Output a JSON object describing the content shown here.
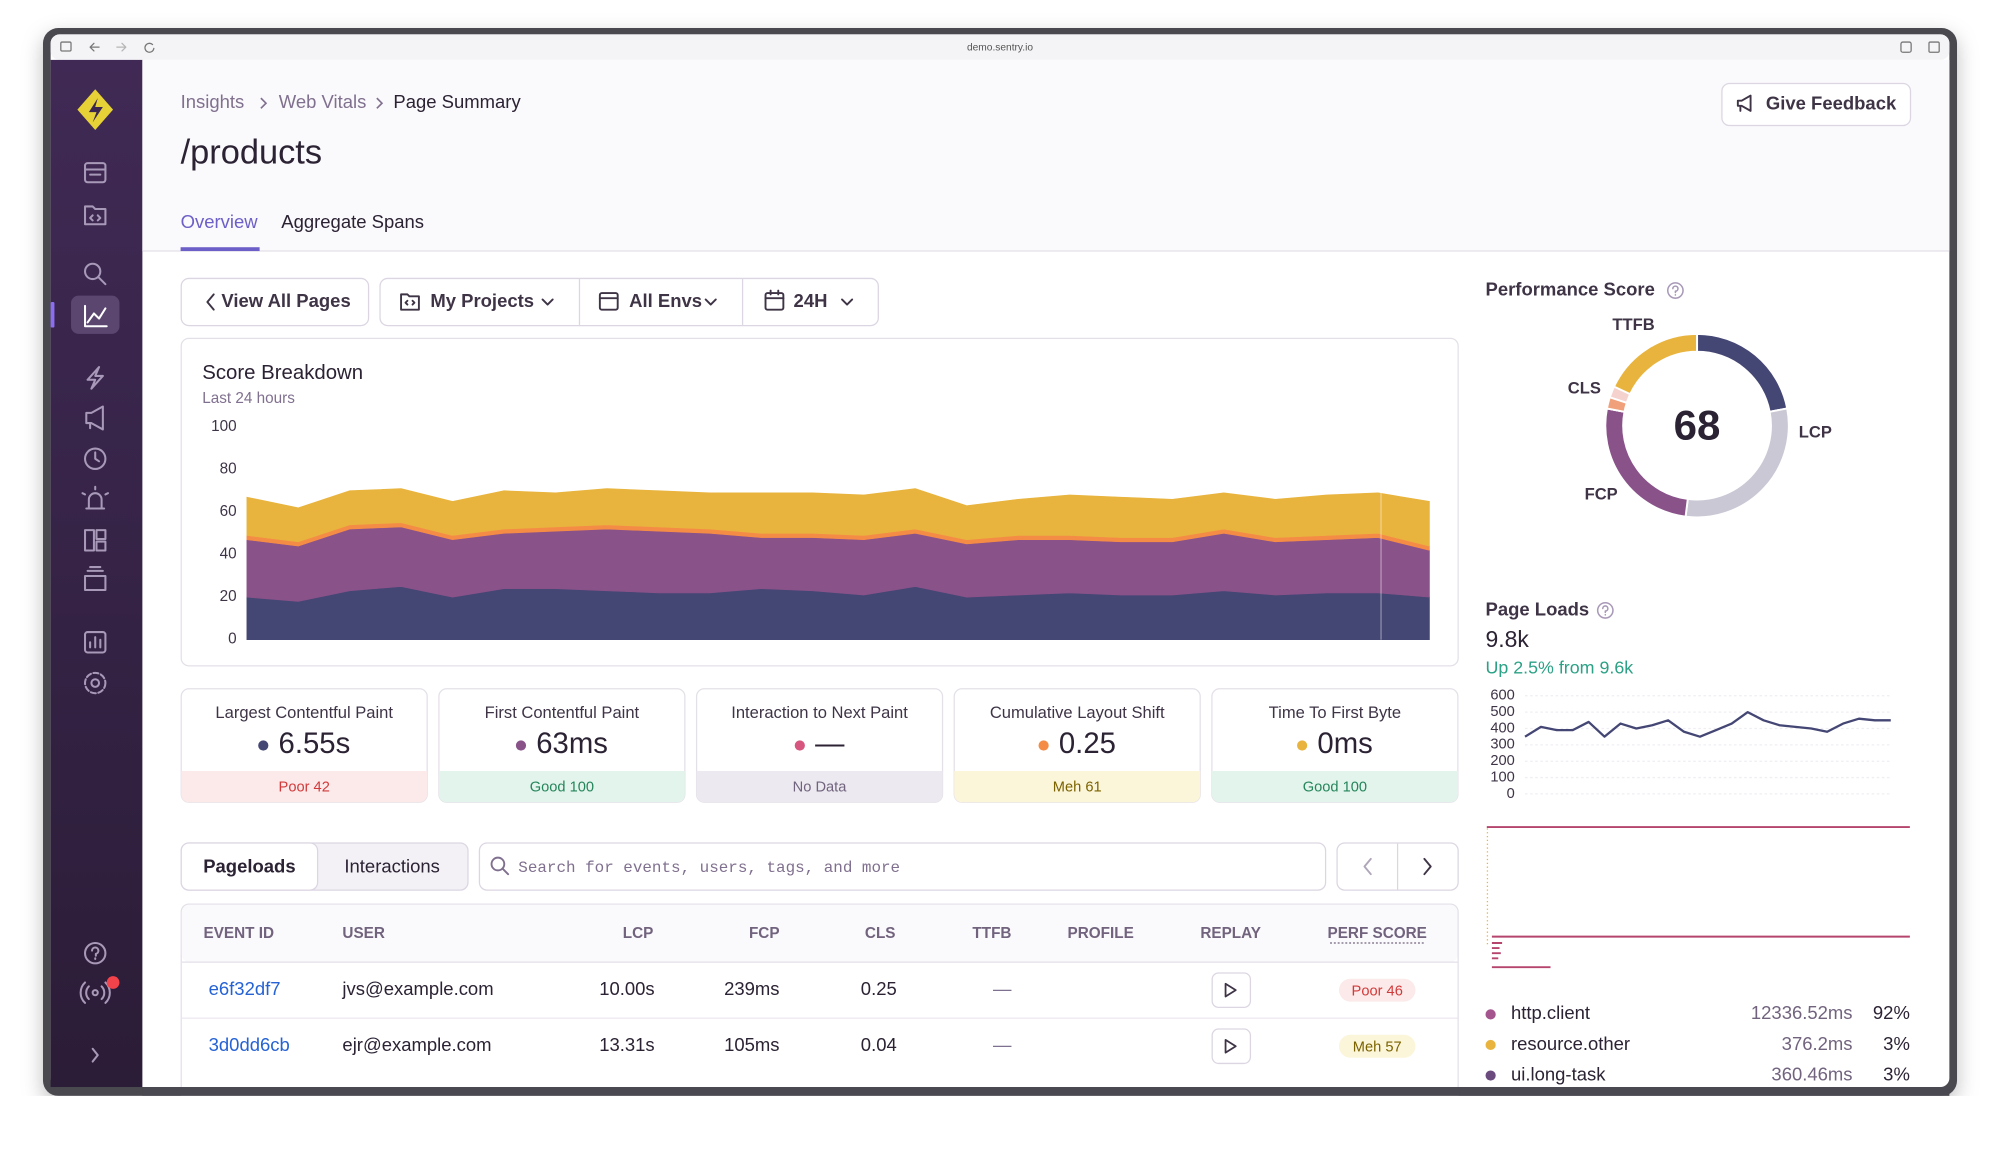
{
  "browser_url": "demo.sentry.io",
  "breadcrumbs": [
    "Insights",
    "Web Vitals",
    "Page Summary"
  ],
  "page_title": "/products",
  "feedback_button": "Give Feedback",
  "tabs": [
    "Overview",
    "Aggregate Spans"
  ],
  "filters": [
    "View All Pages",
    "My Projects",
    "All Envs",
    "24H"
  ],
  "chart_data": [
    {
      "type": "area",
      "title": "Score Breakdown",
      "subtitle": "Last 24 hours",
      "stacked": true,
      "categories": [
        null,
        null,
        null,
        null,
        null,
        null,
        null,
        null,
        null,
        null,
        null,
        null,
        null,
        null,
        null,
        null,
        null,
        null,
        null,
        null,
        null,
        null,
        null,
        null
      ],
      "series": [
        {
          "color": "#444674",
          "values": [
            20,
            18,
            23,
            25,
            20,
            24,
            24,
            23,
            22,
            22,
            24,
            23,
            21,
            25,
            20,
            21,
            22,
            21,
            21,
            23,
            21,
            22,
            22,
            20
          ]
        },
        {
          "color": "#895289",
          "values": [
            27,
            26,
            29,
            28,
            27,
            26,
            27,
            29,
            29,
            28,
            24,
            25,
            26,
            25,
            25,
            26,
            25,
            25,
            25,
            27,
            25,
            25,
            26,
            22
          ]
        },
        {
          "color": "#f58c46",
          "values": [
            2,
            2,
            2,
            2,
            2,
            2,
            2,
            2,
            2,
            2,
            2,
            2,
            2,
            2,
            2,
            2,
            2,
            2,
            2,
            2,
            2,
            2,
            2,
            2
          ]
        },
        {
          "color": "#e8b43e",
          "values": [
            18,
            16,
            16,
            16,
            16,
            18,
            16,
            17,
            17,
            17,
            19,
            19,
            19,
            19,
            16,
            17,
            19,
            19,
            18,
            17,
            18,
            19,
            19,
            21
          ]
        }
      ],
      "ylim": [
        0,
        100
      ],
      "yticks": [
        0,
        20,
        40,
        60,
        80,
        100
      ],
      "grid": false
    },
    {
      "type": "pie",
      "title": "Performance Score",
      "score": 68,
      "categories": [
        "LCP",
        "FCP",
        "CLS",
        "TTFB"
      ],
      "values": [
        22,
        26,
        2,
        18
      ],
      "shortfall": [
        30,
        0,
        2,
        0
      ],
      "colors": [
        "#444674",
        "#895289",
        "#f0a07a",
        "#e8b43e"
      ],
      "shortfall_colors": [
        "#c9c8d4",
        "#e2cfe2",
        "#f6d2cf",
        "#f4e1b3"
      ]
    },
    {
      "type": "line",
      "title": "Page Loads",
      "total": "9.8k",
      "change": "Up 2.5% from 9.6k",
      "categories": [
        null,
        null,
        null,
        null,
        null,
        null,
        null,
        null,
        null,
        null,
        null,
        null,
        null,
        null,
        null,
        null,
        null,
        null,
        null,
        null,
        null,
        null,
        null,
        null
      ],
      "series": [
        {
          "color": "#444674",
          "values": [
            350,
            410,
            390,
            390,
            440,
            350,
            430,
            400,
            420,
            450,
            380,
            350,
            390,
            430,
            500,
            450,
            420,
            410,
            400,
            380,
            430,
            460,
            450,
            450
          ]
        }
      ],
      "ylim": [
        0,
        600
      ],
      "yticks": [
        0,
        100,
        200,
        300,
        400,
        500,
        600
      ],
      "grid": true
    }
  ],
  "vitals": [
    {
      "name": "Largest Contentful Paint",
      "value": "6.55s",
      "status": "Poor 42",
      "dot_color": "#444674",
      "badge_color": "#fce9e9",
      "badge_text_color": "#d13a3a"
    },
    {
      "name": "First Contentful Paint",
      "value": "63ms",
      "status": "Good 100",
      "dot_color": "#895289",
      "badge_color": "#e3f4ec",
      "badge_text_color": "#25855a"
    },
    {
      "name": "Interaction to Next Paint",
      "value": "—",
      "status": "No Data",
      "dot_color": "#d6567f",
      "badge_color": "#eceaf0",
      "badge_text_color": "#71637e"
    },
    {
      "name": "Cumulative Layout Shift",
      "value": "0.25",
      "status": "Meh 61",
      "dot_color": "#f58c46",
      "badge_color": "#fbf5d9",
      "badge_text_color": "#7b6200"
    },
    {
      "name": "Time To First Byte",
      "value": "0ms",
      "status": "Good 100",
      "dot_color": "#e8b43e",
      "badge_color": "#e3f4ec",
      "badge_text_color": "#25855a"
    }
  ],
  "events": {
    "tabs": [
      "Pageloads",
      "Interactions"
    ],
    "search_placeholder": "Search for events, users, tags, and more",
    "columns": [
      "EVENT ID",
      "USER",
      "LCP",
      "FCP",
      "CLS",
      "TTFB",
      "PROFILE",
      "REPLAY",
      "PERF SCORE"
    ],
    "rows": [
      {
        "event_id": "e6f32df7",
        "user": "jvs@example.com",
        "lcp": "10.00s",
        "fcp": "239ms",
        "cls": "0.25",
        "ttfb": "—",
        "perf_score": "Poor 46",
        "badge_color": "#fce9e9",
        "badge_text_color": "#d13a3a"
      },
      {
        "event_id": "3d0dd6cb",
        "user": "ejr@example.com",
        "lcp": "13.31s",
        "fcp": "105ms",
        "cls": "0.04",
        "ttfb": "—",
        "perf_score": "Meh 57",
        "badge_color": "#fbf5d9",
        "badge_text_color": "#7b6200"
      }
    ]
  },
  "span_breakdown": [
    {
      "name": "http.client",
      "duration": "12336.52ms",
      "share": "92%",
      "color": "#a4558e"
    },
    {
      "name": "resource.other",
      "duration": "376.2ms",
      "share": "3%",
      "color": "#e8b43e"
    },
    {
      "name": "ui.long-task",
      "duration": "360.46ms",
      "share": "3%",
      "color": "#6b4a7e"
    }
  ]
}
